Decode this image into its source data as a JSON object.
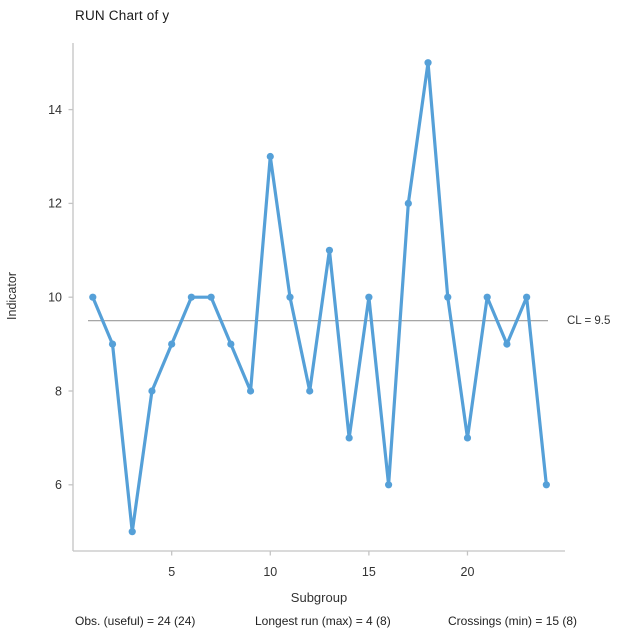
{
  "title": "RUN Chart of y",
  "chart_data": {
    "type": "line",
    "title": "RUN Chart of y",
    "xlabel": "Subgroup",
    "ylabel": "Indicator",
    "x": [
      1,
      2,
      3,
      4,
      5,
      6,
      7,
      8,
      9,
      10,
      11,
      12,
      13,
      14,
      15,
      16,
      17,
      18,
      19,
      20,
      21,
      22,
      23,
      24
    ],
    "values": [
      10,
      9,
      5,
      8,
      9,
      10,
      10,
      9,
      8,
      13,
      10,
      8,
      11,
      7,
      10,
      6,
      12,
      15,
      10,
      7,
      10,
      9,
      10,
      6
    ],
    "center_line": 9.5,
    "center_line_label": "CL = 9.5",
    "xticks": [
      5,
      10,
      15,
      20
    ],
    "yticks": [
      6,
      8,
      10,
      12,
      14
    ],
    "xlim": [
      1,
      24
    ],
    "ylim": [
      4.6,
      15.6
    ],
    "grid": false,
    "legend": "none",
    "series_color": "#55a0d8",
    "center_line_color": "#9a9a9a",
    "axis_color": "#c4c4c4",
    "tick_text_color": "#333333"
  },
  "footer": {
    "obs": "Obs. (useful) = 24 (24)",
    "longest_run": "Longest run (max) = 4 (8)",
    "crossings": "Crossings (min) = 15 (8)"
  }
}
